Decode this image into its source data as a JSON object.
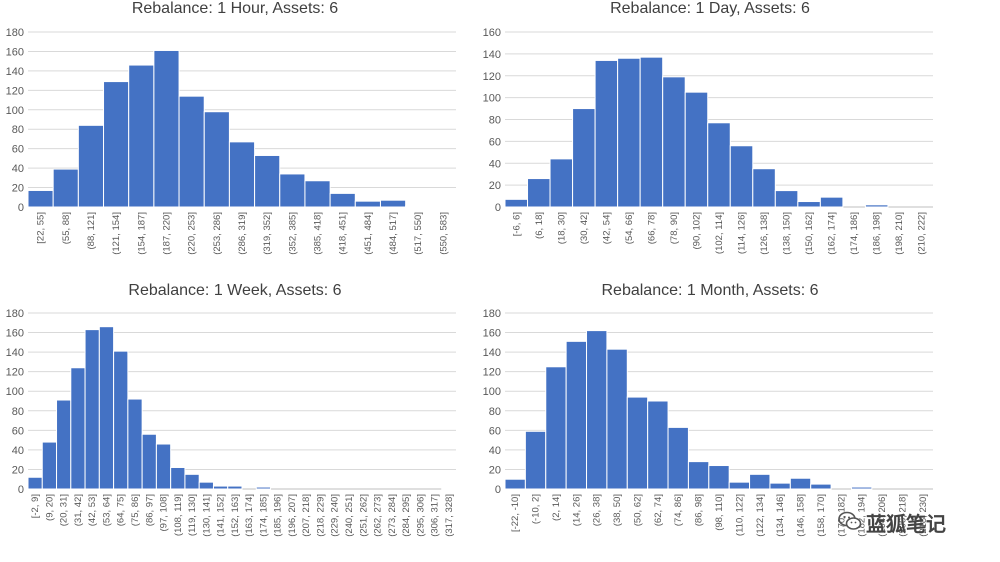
{
  "colors": {
    "bar": "#4472c4",
    "grid": "#d9d9d9",
    "text": "#595959",
    "title": "#404040"
  },
  "watermark": {
    "icon": "wechat-icon",
    "text": "蓝狐笔记"
  },
  "chart_data": [
    {
      "type": "bar",
      "title": "Rebalance: 1 Hour, Assets: 6",
      "ylim": [
        0,
        180
      ],
      "yticks": [
        0,
        20,
        40,
        60,
        80,
        100,
        120,
        140,
        160,
        180
      ],
      "grid": true,
      "categories": [
        "[22, 55]",
        "(55, 88]",
        "(88, 121]",
        "(121, 154]",
        "(154, 187]",
        "(187, 220]",
        "(220, 253]",
        "(253, 286]",
        "(286, 319]",
        "(319, 352]",
        "(352, 385]",
        "(385, 418]",
        "(418, 451]",
        "(451, 484]",
        "(484, 517]",
        "(517, 550]",
        "(550, 583]"
      ],
      "values": [
        17,
        39,
        84,
        129,
        146,
        161,
        114,
        98,
        67,
        53,
        34,
        27,
        14,
        6,
        7,
        1,
        1
      ]
    },
    {
      "type": "bar",
      "title": "Rebalance: 1 Day, Assets: 6",
      "ylim": [
        0,
        160
      ],
      "yticks": [
        0,
        20,
        40,
        60,
        80,
        100,
        120,
        140,
        160
      ],
      "grid": true,
      "categories": [
        "[-6, 6]",
        "(6, 18]",
        "(18, 30]",
        "(30, 42]",
        "(42, 54]",
        "(54, 66]",
        "(66, 78]",
        "(78, 90]",
        "(90, 102]",
        "(102, 114]",
        "(114, 126]",
        "(126, 138]",
        "(138, 150]",
        "(150, 162]",
        "(162, 174]",
        "(174, 186]",
        "(186, 198]",
        "(198, 210]",
        "(210, 222]"
      ],
      "values": [
        7,
        26,
        44,
        90,
        134,
        136,
        137,
        119,
        105,
        77,
        56,
        35,
        15,
        5,
        9,
        0,
        2,
        0,
        0
      ]
    },
    {
      "type": "bar",
      "title": "Rebalance: 1 Week, Assets: 6",
      "ylim": [
        0,
        180
      ],
      "yticks": [
        0,
        20,
        40,
        60,
        80,
        100,
        120,
        140,
        160,
        180
      ],
      "grid": true,
      "categories": [
        "[-2, 9]",
        "(9, 20]",
        "(20, 31]",
        "(31, 42]",
        "(42, 53]",
        "(53, 64]",
        "(64, 75]",
        "(75, 86]",
        "(86, 97]",
        "(97, 108]",
        "(108, 119]",
        "(119, 130]",
        "(130, 141]",
        "(141, 152]",
        "(152, 163]",
        "(163, 174]",
        "(174, 185]",
        "(185, 196]",
        "(196, 207]",
        "(207, 218]",
        "(218, 229]",
        "(229, 240]",
        "(240, 251]",
        "(251, 262]",
        "(262, 273]",
        "(273, 284]",
        "(284, 295]",
        "(295, 306]",
        "(306, 317]",
        "(317, 328]"
      ],
      "values": [
        12,
        48,
        91,
        124,
        163,
        166,
        141,
        92,
        56,
        46,
        22,
        15,
        7,
        3,
        3,
        0,
        2,
        0,
        0,
        0,
        0,
        0,
        0,
        0,
        0,
        0,
        0,
        0,
        0,
        1
      ]
    },
    {
      "type": "bar",
      "title": "Rebalance: 1 Month, Assets: 6",
      "ylim": [
        0,
        180
      ],
      "yticks": [
        0,
        20,
        40,
        60,
        80,
        100,
        120,
        140,
        160,
        180
      ],
      "grid": true,
      "categories": [
        "[-22, -10]",
        "(-10, 2]",
        "(2, 14]",
        "(14, 26]",
        "(26, 38]",
        "(38, 50]",
        "(50, 62]",
        "(62, 74]",
        "(74, 86]",
        "(86, 98]",
        "(98, 110]",
        "(110, 122]",
        "(122, 134]",
        "(134, 146]",
        "(146, 158]",
        "(158, 170]",
        "(170, 182]",
        "(182, 194]",
        "(194, 206]",
        "(206, 218]",
        "(218, 230]"
      ],
      "values": [
        10,
        59,
        125,
        151,
        162,
        143,
        94,
        90,
        63,
        28,
        24,
        7,
        15,
        6,
        11,
        5,
        0,
        2,
        0,
        0,
        0
      ]
    }
  ]
}
